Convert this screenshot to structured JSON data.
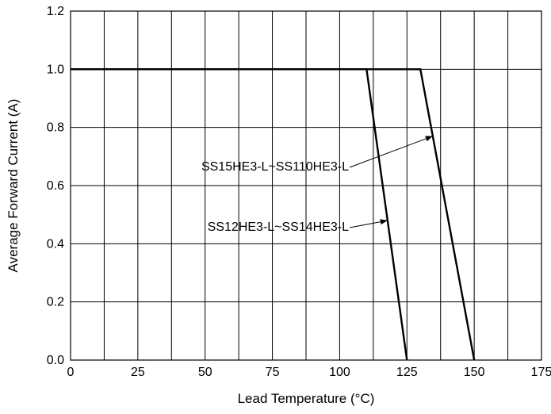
{
  "chart_data": {
    "type": "line",
    "title": "",
    "xlabel": "Lead Temperature (°C)",
    "ylabel": "Average Forward Current (A)",
    "xlim": [
      0,
      175
    ],
    "ylim": [
      0,
      1.2
    ],
    "x_ticks": [
      "0",
      "25",
      "50",
      "75",
      "100",
      "125",
      "150",
      "175"
    ],
    "y_ticks": [
      "0.0",
      "0.2",
      "0.4",
      "0.6",
      "0.8",
      "1.0",
      "1.2"
    ],
    "grid": true,
    "series": [
      {
        "name": "SS12HE3-L~SS14HE3-L",
        "x": [
          0,
          110,
          125
        ],
        "y": [
          1.0,
          1.0,
          0.0
        ]
      },
      {
        "name": "SS15HE3-L~SS110HE3-L",
        "x": [
          0,
          130,
          150
        ],
        "y": [
          1.0,
          1.0,
          0.0
        ]
      }
    ],
    "annotations": [
      {
        "text": "SS15HE3-L~SS110HE3-L",
        "target_series": 1,
        "target_y": 0.77
      },
      {
        "text": "SS12HE3-L~SS14HE3-L",
        "target_series": 0,
        "target_y": 0.48
      }
    ]
  }
}
